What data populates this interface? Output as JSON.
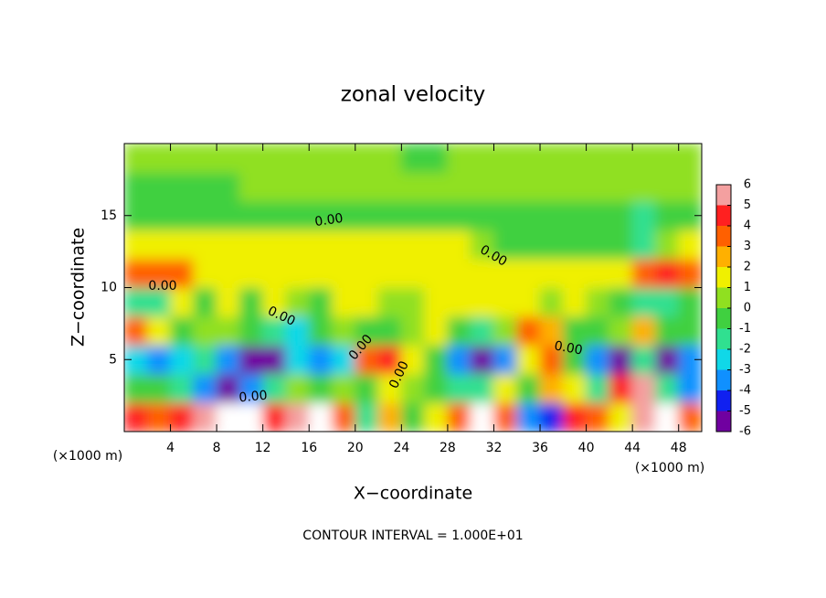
{
  "chart_data": {
    "type": "heatmap",
    "title": "zonal velocity",
    "x_label": "X−coordinate",
    "y_label": "Z−coordinate",
    "x_unit_label": "(×1000 m)",
    "footer": "CONTOUR INTERVAL = 1.000E+01",
    "contour_label": "0.00",
    "xlim": [
      0,
      50
    ],
    "ylim": [
      0,
      20
    ],
    "xticks": [
      4,
      8,
      12,
      16,
      20,
      24,
      28,
      32,
      36,
      40,
      44,
      48
    ],
    "yticks": [
      5,
      10,
      15
    ],
    "x": [
      1,
      3,
      5,
      7,
      9,
      11,
      13,
      15,
      17,
      19,
      21,
      23,
      25,
      27,
      29,
      31,
      33,
      35,
      37,
      39,
      41,
      43,
      45,
      47,
      49
    ],
    "y": [
      1,
      3,
      5,
      7,
      9,
      11,
      13,
      15,
      17,
      19
    ],
    "values": [
      [
        4,
        3,
        4,
        5,
        6,
        6,
        4,
        5,
        6,
        3,
        -2,
        2,
        -1,
        1,
        3,
        6,
        3,
        -4,
        -5,
        4,
        3,
        1,
        5,
        6,
        3
      ],
      [
        -1,
        -1,
        -2,
        -4,
        -6,
        -4,
        -2,
        0.5,
        -1,
        0.5,
        -1,
        1,
        0.5,
        -1,
        -2,
        -2,
        1,
        -1,
        2,
        1,
        -2,
        4,
        5,
        -2,
        -4
      ],
      [
        -3,
        -4,
        -3,
        -2,
        -4,
        -6,
        -6,
        -3,
        -4,
        -3,
        3,
        4,
        1,
        -1,
        -4,
        -6,
        -4,
        1,
        3,
        -1,
        -4,
        -6,
        -2,
        -6,
        -4
      ],
      [
        3,
        1,
        -1,
        0.5,
        0.5,
        -0.5,
        -2,
        -3,
        -1,
        0.5,
        -0.5,
        -1,
        0.5,
        1,
        -1,
        -2,
        0.5,
        3,
        2,
        -0.5,
        -1,
        0.5,
        2,
        -1,
        -1
      ],
      [
        -2,
        -1.5,
        1,
        -1,
        1,
        -0.5,
        1,
        0.5,
        -1,
        1.5,
        1,
        0.5,
        0.5,
        1,
        1,
        1.5,
        1,
        1,
        0.5,
        1,
        0,
        -1,
        -1.5,
        -2,
        -1
      ],
      [
        3,
        3,
        3,
        1.5,
        1.5,
        1.5,
        1.5,
        1.5,
        1.5,
        1.5,
        1.5,
        1.5,
        1.5,
        1.5,
        1.5,
        1,
        1,
        1,
        1,
        1,
        1,
        1.5,
        3,
        4,
        3
      ],
      [
        1,
        1,
        1,
        1,
        1,
        1,
        1,
        1,
        1,
        1,
        1,
        1,
        1,
        1,
        1,
        0.5,
        -0.8,
        -0.8,
        -0.8,
        -0.8,
        -0.8,
        -0.8,
        -1.5,
        0.5,
        1
      ],
      [
        -0.3,
        -0.3,
        -0.3,
        -0.3,
        -0.3,
        -0.3,
        -0.3,
        -0.3,
        -0.3,
        -0.3,
        -0.3,
        -0.3,
        -0.5,
        -0.5,
        -0.5,
        -0.5,
        -0.8,
        -0.8,
        -0.8,
        -0.8,
        -0.8,
        -0.5,
        -1.5,
        -0.5,
        -0.5
      ],
      [
        -0.5,
        -0.5,
        -0.5,
        -0.5,
        -0.5,
        0.3,
        0.3,
        0.3,
        0.3,
        0.3,
        0.3,
        0.3,
        0.3,
        0.3,
        0.3,
        0.3,
        0.3,
        0.3,
        0.3,
        0.3,
        0.3,
        0.3,
        0.3,
        0.3,
        0.3
      ],
      [
        0.5,
        0.5,
        0.5,
        0.5,
        0.5,
        0.5,
        0.5,
        0.5,
        0.5,
        0.5,
        0.5,
        0.5,
        -0.3,
        -0.3,
        0.5,
        0.5,
        0.5,
        0.5,
        0.5,
        0.5,
        0.5,
        0.5,
        0.5,
        0.5,
        0.5
      ]
    ],
    "colorbar_ticks": [
      6,
      5,
      4,
      3,
      2,
      1,
      0,
      -1,
      -2,
      -3,
      -4,
      -5,
      -6
    ],
    "colors": [
      "#7000a0",
      "#1020f0",
      "#1090ff",
      "#10d8e8",
      "#30e090",
      "#40d040",
      "#90e020",
      "#f0f000",
      "#ffb000",
      "#ff6000",
      "#ff2020",
      "#f4a0a0"
    ],
    "over_color": "#ffffff"
  }
}
